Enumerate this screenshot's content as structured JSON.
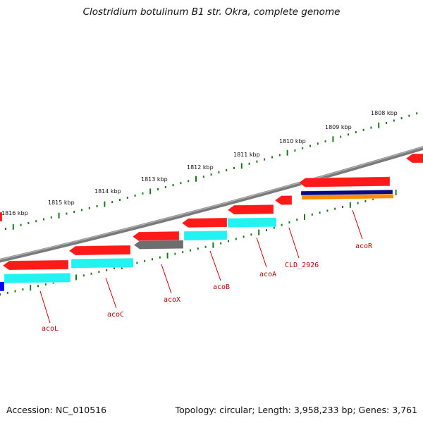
{
  "title": "Clostridium botulinum B1 str. Okra, complete genome",
  "footer": {
    "accession": "Accession: NC_010516",
    "topology": "Topology: circular; Length: 3,958,233 bp; Genes: 3,761"
  },
  "kbp_labels": [
    "1816 kbp",
    "1815 kbp",
    "1814 kbp",
    "1813 kbp",
    "1812 kbp",
    "1811 kbp",
    "1810 kbp",
    "1809 kbp",
    "1808 kbp"
  ],
  "genes": [
    {
      "name": "acoL"
    },
    {
      "name": "acoC"
    },
    {
      "name": "acoX"
    },
    {
      "name": "acoB"
    },
    {
      "name": "acoA"
    },
    {
      "name": "CLD_2926"
    },
    {
      "name": "acoR"
    }
  ],
  "colors": {
    "cds": "#ff1a1a",
    "cyan": "#22f2f2",
    "gray": "#6e6e6e",
    "navy": "#0a0a80",
    "orange": "#ff8c00",
    "blue": "#0000ff",
    "backbone": "#808080",
    "ticks": "#1a7a1a",
    "label": "#cc0000"
  }
}
